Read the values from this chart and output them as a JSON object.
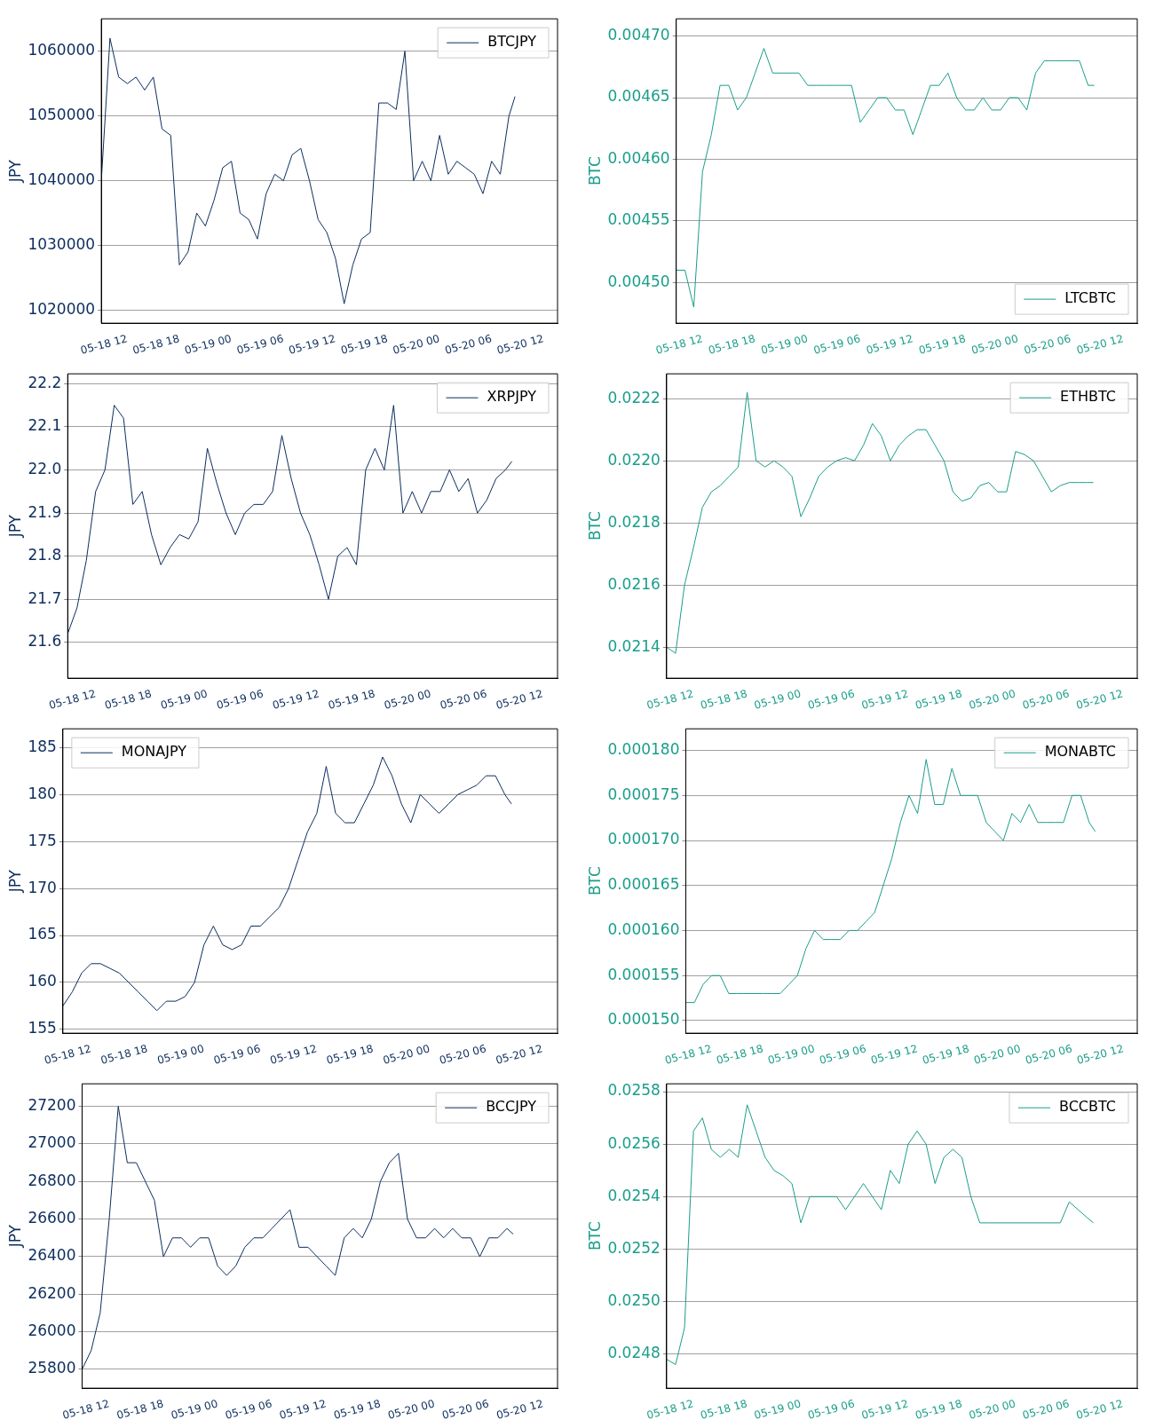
{
  "chart_data": [
    {
      "type": "line",
      "ylabel": "JPY",
      "x": [
        "--05-18T09:00",
        "--05-18T10:00",
        "--05-18T11:00",
        "--05-18T12:00",
        "--05-18T13:00",
        "--05-18T14:00",
        "--05-18T15:00",
        "--05-18T16:00",
        "--05-18T17:00",
        "--05-18T18:00",
        "--05-18T19:00",
        "--05-18T20:00",
        "--05-18T21:00",
        "--05-18T22:00",
        "--05-18T23:00",
        "--05-19T00:00",
        "--05-19T01:00",
        "--05-19T02:00",
        "--05-19T03:00",
        "--05-19T04:00",
        "--05-19T05:00",
        "--05-19T06:00",
        "--05-19T07:00",
        "--05-19T08:00",
        "--05-19T09:00",
        "--05-19T10:00",
        "--05-19T11:00",
        "--05-19T12:00",
        "--05-19T13:00",
        "--05-19T14:00",
        "--05-19T15:00",
        "--05-19T16:00",
        "--05-19T17:00",
        "--05-19T18:00",
        "--05-19T19:00",
        "--05-19T20:00",
        "--05-19T21:00",
        "--05-19T22:00",
        "--05-19T23:00",
        "--05-20T00:00",
        "--05-20T01:00",
        "--05-20T02:00",
        "--05-20T03:00",
        "--05-20T04:00",
        "--05-20T05:00",
        "--05-20T06:00",
        "--05-20T07:00",
        "--05-20T08:00",
        "--05-20T08:42"
      ],
      "xlim": [
        "--05-18T09:00",
        "--05-20T13:36"
      ],
      "xticks": [
        {
          "value": "--05-18T12:00",
          "label": "05-18 12"
        },
        {
          "value": "--05-18T18:00",
          "label": "05-18 18"
        },
        {
          "value": "--05-19T00:00",
          "label": "05-19 00"
        },
        {
          "value": "--05-19T06:00",
          "label": "05-19 06"
        },
        {
          "value": "--05-19T12:00",
          "label": "05-19 12"
        },
        {
          "value": "--05-19T18:00",
          "label": "05-19 18"
        },
        {
          "value": "--05-20T00:00",
          "label": "05-20 00"
        },
        {
          "value": "--05-20T06:00",
          "label": "05-20 06"
        },
        {
          "value": "--05-20T12:00",
          "label": "05-20 12"
        }
      ],
      "ylim": [
        1018000,
        1065000
      ],
      "yticks": [
        1020000,
        1030000,
        1040000,
        1050000,
        1060000
      ],
      "grid": "y",
      "legend": "top right",
      "marker": "none",
      "series": [
        {
          "name": "BTCJPY",
          "color": "#0d2e5e",
          "values": [
            1040000,
            1062000,
            1056000,
            1055000,
            1056000,
            1054000,
            1056000,
            1048000,
            1047000,
            1027000,
            1029000,
            1035000,
            1033000,
            1037000,
            1042000,
            1043000,
            1035000,
            1034000,
            1031000,
            1038000,
            1041000,
            1040000,
            1044000,
            1045000,
            1040000,
            1034000,
            1032000,
            1028000,
            1021000,
            1027000,
            1031000,
            1032000,
            1052000,
            1052000,
            1051000,
            1060000,
            1040000,
            1043000,
            1040000,
            1047000,
            1041000,
            1043000,
            1042000,
            1041000,
            1038000,
            1043000,
            1041000,
            1050000,
            1053000
          ]
        }
      ]
    },
    {
      "type": "line",
      "ylabel": "BTC",
      "x": [
        "--05-18T09:00",
        "--05-18T10:00",
        "--05-18T11:00",
        "--05-18T12:00",
        "--05-18T13:00",
        "--05-18T14:00",
        "--05-18T15:00",
        "--05-18T16:00",
        "--05-18T17:00",
        "--05-18T18:00",
        "--05-18T19:00",
        "--05-18T20:00",
        "--05-18T21:00",
        "--05-18T22:00",
        "--05-18T23:00",
        "--05-19T00:00",
        "--05-19T01:00",
        "--05-19T02:00",
        "--05-19T03:00",
        "--05-19T04:00",
        "--05-19T05:00",
        "--05-19T06:00",
        "--05-19T07:00",
        "--05-19T08:00",
        "--05-19T09:00",
        "--05-19T10:00",
        "--05-19T11:00",
        "--05-19T12:00",
        "--05-19T13:00",
        "--05-19T14:00",
        "--05-19T15:00",
        "--05-19T16:00",
        "--05-19T17:00",
        "--05-19T18:00",
        "--05-19T19:00",
        "--05-19T20:00",
        "--05-19T21:00",
        "--05-19T22:00",
        "--05-19T23:00",
        "--05-20T00:00",
        "--05-20T01:00",
        "--05-20T02:00",
        "--05-20T03:00",
        "--05-20T04:00",
        "--05-20T05:00",
        "--05-20T06:00",
        "--05-20T07:00",
        "--05-20T08:00",
        "--05-20T08:42"
      ],
      "xlim": [
        "--05-18T09:00",
        "--05-20T13:36"
      ],
      "xticks": [
        {
          "value": "--05-18T12:00",
          "label": "05-18 12"
        },
        {
          "value": "--05-18T18:00",
          "label": "05-18 18"
        },
        {
          "value": "--05-19T00:00",
          "label": "05-19 00"
        },
        {
          "value": "--05-19T06:00",
          "label": "05-19 06"
        },
        {
          "value": "--05-19T12:00",
          "label": "05-19 12"
        },
        {
          "value": "--05-19T18:00",
          "label": "05-19 18"
        },
        {
          "value": "--05-20T00:00",
          "label": "05-20 00"
        },
        {
          "value": "--05-20T06:00",
          "label": "05-20 06"
        },
        {
          "value": "--05-20T12:00",
          "label": "05-20 12"
        }
      ],
      "ylim": [
        0.004467,
        0.004714
      ],
      "yticks": [
        {
          "value": 0.0045,
          "label": "0.00450"
        },
        {
          "value": 0.00455,
          "label": "0.00455"
        },
        {
          "value": 0.0046,
          "label": "0.00460"
        },
        {
          "value": 0.00465,
          "label": "0.00465"
        },
        {
          "value": 0.0047,
          "label": "0.00470"
        }
      ],
      "grid": "y",
      "legend": "bottom right",
      "marker": "none",
      "series": [
        {
          "name": "LTCBTC",
          "color": "#1a9e8a",
          "values": [
            0.00451,
            0.00451,
            0.00448,
            0.00459,
            0.00462,
            0.00466,
            0.00466,
            0.00464,
            0.00465,
            0.00467,
            0.00469,
            0.00467,
            0.00467,
            0.00467,
            0.00467,
            0.00466,
            0.00466,
            0.00466,
            0.00466,
            0.00466,
            0.00466,
            0.00463,
            0.00464,
            0.00465,
            0.00465,
            0.00464,
            0.00464,
            0.00462,
            0.00464,
            0.00466,
            0.00466,
            0.00467,
            0.00465,
            0.00464,
            0.00464,
            0.00465,
            0.00464,
            0.00464,
            0.00465,
            0.00465,
            0.00464,
            0.00467,
            0.00468,
            0.00468,
            0.00468,
            0.00468,
            0.00468,
            0.00466,
            0.00466
          ]
        }
      ]
    },
    {
      "type": "line",
      "ylabel": "JPY",
      "x": [
        "--05-18T09:00",
        "--05-18T10:00",
        "--05-18T11:00",
        "--05-18T12:00",
        "--05-18T13:00",
        "--05-18T14:00",
        "--05-18T15:00",
        "--05-18T16:00",
        "--05-18T17:00",
        "--05-18T18:00",
        "--05-18T19:00",
        "--05-18T20:00",
        "--05-18T21:00",
        "--05-18T22:00",
        "--05-18T23:00",
        "--05-19T00:00",
        "--05-19T01:00",
        "--05-19T02:00",
        "--05-19T03:00",
        "--05-19T04:00",
        "--05-19T05:00",
        "--05-19T06:00",
        "--05-19T07:00",
        "--05-19T08:00",
        "--05-19T09:00",
        "--05-19T10:00",
        "--05-19T11:00",
        "--05-19T12:00",
        "--05-19T13:00",
        "--05-19T14:00",
        "--05-19T15:00",
        "--05-19T16:00",
        "--05-19T17:00",
        "--05-19T18:00",
        "--05-19T19:00",
        "--05-19T20:00",
        "--05-19T21:00",
        "--05-19T22:00",
        "--05-19T23:00",
        "--05-20T00:00",
        "--05-20T01:00",
        "--05-20T02:00",
        "--05-20T03:00",
        "--05-20T04:00",
        "--05-20T05:00",
        "--05-20T06:00",
        "--05-20T07:00",
        "--05-20T08:00",
        "--05-20T08:42"
      ],
      "xlim": [
        "--05-18T09:00",
        "--05-20T13:36"
      ],
      "xticks": [
        {
          "value": "--05-18T12:00",
          "label": "05-18 12"
        },
        {
          "value": "--05-18T18:00",
          "label": "05-18 18"
        },
        {
          "value": "--05-19T00:00",
          "label": "05-19 00"
        },
        {
          "value": "--05-19T06:00",
          "label": "05-19 06"
        },
        {
          "value": "--05-19T12:00",
          "label": "05-19 12"
        },
        {
          "value": "--05-19T18:00",
          "label": "05-19 18"
        },
        {
          "value": "--05-20T00:00",
          "label": "05-20 00"
        },
        {
          "value": "--05-20T06:00",
          "label": "05-20 06"
        },
        {
          "value": "--05-20T12:00",
          "label": "05-20 12"
        }
      ],
      "ylim": [
        21.517,
        22.223
      ],
      "yticks": [
        21.6,
        21.7,
        21.8,
        21.9,
        {
          "value": 22,
          "label": "22.0"
        },
        22.1,
        22.2
      ],
      "grid": "y",
      "legend": "top right",
      "marker": "none",
      "series": [
        {
          "name": "XRPJPY",
          "color": "#0d2e5e",
          "values": [
            21.62,
            21.68,
            21.79,
            21.95,
            22.0,
            22.15,
            22.12,
            21.92,
            21.95,
            21.85,
            21.78,
            21.82,
            21.85,
            21.84,
            21.88,
            22.05,
            21.97,
            21.9,
            21.85,
            21.9,
            21.92,
            21.92,
            21.95,
            22.08,
            21.98,
            21.9,
            21.85,
            21.78,
            21.7,
            21.8,
            21.82,
            21.78,
            22.0,
            22.05,
            22.0,
            22.15,
            21.9,
            21.95,
            21.9,
            21.95,
            21.95,
            22.0,
            21.95,
            21.98,
            21.9,
            21.93,
            21.98,
            22.0,
            22.02
          ]
        }
      ]
    },
    {
      "type": "line",
      "ylabel": "BTC",
      "x": [
        "--05-18T09:00",
        "--05-18T10:00",
        "--05-18T11:00",
        "--05-18T12:00",
        "--05-18T13:00",
        "--05-18T14:00",
        "--05-18T15:00",
        "--05-18T16:00",
        "--05-18T17:00",
        "--05-18T18:00",
        "--05-18T19:00",
        "--05-18T20:00",
        "--05-18T21:00",
        "--05-18T22:00",
        "--05-18T23:00",
        "--05-19T00:00",
        "--05-19T01:00",
        "--05-19T02:00",
        "--05-19T03:00",
        "--05-19T04:00",
        "--05-19T05:00",
        "--05-19T06:00",
        "--05-19T07:00",
        "--05-19T08:00",
        "--05-19T09:00",
        "--05-19T10:00",
        "--05-19T11:00",
        "--05-19T12:00",
        "--05-19T13:00",
        "--05-19T14:00",
        "--05-19T15:00",
        "--05-19T16:00",
        "--05-19T17:00",
        "--05-19T18:00",
        "--05-19T19:00",
        "--05-19T20:00",
        "--05-19T21:00",
        "--05-19T22:00",
        "--05-19T23:00",
        "--05-20T00:00",
        "--05-20T01:00",
        "--05-20T02:00",
        "--05-20T03:00",
        "--05-20T04:00",
        "--05-20T05:00",
        "--05-20T06:00",
        "--05-20T07:00",
        "--05-20T08:00",
        "--05-20T08:42"
      ],
      "xlim": [
        "--05-18T09:00",
        "--05-20T13:36"
      ],
      "xticks": [
        {
          "value": "--05-18T12:00",
          "label": "05-18 12"
        },
        {
          "value": "--05-18T18:00",
          "label": "05-18 18"
        },
        {
          "value": "--05-19T00:00",
          "label": "05-19 00"
        },
        {
          "value": "--05-19T06:00",
          "label": "05-19 06"
        },
        {
          "value": "--05-19T12:00",
          "label": "05-19 12"
        },
        {
          "value": "--05-19T18:00",
          "label": "05-19 18"
        },
        {
          "value": "--05-20T00:00",
          "label": "05-20 00"
        },
        {
          "value": "--05-20T06:00",
          "label": "05-20 06"
        },
        {
          "value": "--05-20T12:00",
          "label": "05-20 12"
        }
      ],
      "ylim": [
        0.0213,
        0.02228
      ],
      "yticks": [
        0.0214,
        0.0216,
        0.0218,
        {
          "value": 0.022,
          "label": "0.0220"
        },
        0.0222
      ],
      "grid": "y",
      "legend": "top right",
      "marker": "none",
      "series": [
        {
          "name": "ETHBTC",
          "color": "#1a9e8a",
          "values": [
            0.0214,
            0.02138,
            0.0216,
            0.02172,
            0.02185,
            0.0219,
            0.02192,
            0.02195,
            0.02198,
            0.02222,
            0.022,
            0.02198,
            0.022,
            0.02198,
            0.02195,
            0.02182,
            0.02188,
            0.02195,
            0.02198,
            0.022,
            0.02201,
            0.022,
            0.02205,
            0.02212,
            0.02208,
            0.022,
            0.02205,
            0.02208,
            0.0221,
            0.0221,
            0.02205,
            0.022,
            0.0219,
            0.02187,
            0.02188,
            0.02192,
            0.02193,
            0.0219,
            0.0219,
            0.02203,
            0.02202,
            0.022,
            0.02195,
            0.0219,
            0.02192,
            0.02193,
            0.02193,
            0.02193,
            0.02193
          ]
        }
      ]
    },
    {
      "type": "line",
      "ylabel": "JPY",
      "x": [
        "--05-18T09:00",
        "--05-18T10:00",
        "--05-18T11:00",
        "--05-18T12:00",
        "--05-18T13:00",
        "--05-18T14:00",
        "--05-18T15:00",
        "--05-18T16:00",
        "--05-18T17:00",
        "--05-18T18:00",
        "--05-18T19:00",
        "--05-18T20:00",
        "--05-18T21:00",
        "--05-18T22:00",
        "--05-18T23:00",
        "--05-19T00:00",
        "--05-19T01:00",
        "--05-19T02:00",
        "--05-19T03:00",
        "--05-19T04:00",
        "--05-19T05:00",
        "--05-19T06:00",
        "--05-19T07:00",
        "--05-19T08:00",
        "--05-19T09:00",
        "--05-19T10:00",
        "--05-19T11:00",
        "--05-19T12:00",
        "--05-19T13:00",
        "--05-19T14:00",
        "--05-19T15:00",
        "--05-19T16:00",
        "--05-19T17:00",
        "--05-19T18:00",
        "--05-19T19:00",
        "--05-19T20:00",
        "--05-19T21:00",
        "--05-19T22:00",
        "--05-19T23:00",
        "--05-20T00:00",
        "--05-20T01:00",
        "--05-20T02:00",
        "--05-20T03:00",
        "--05-20T04:00",
        "--05-20T05:00",
        "--05-20T06:00",
        "--05-20T07:00",
        "--05-20T08:00",
        "--05-20T08:42"
      ],
      "xlim": [
        "--05-18T09:00",
        "--05-20T13:36"
      ],
      "xticks": [
        {
          "value": "--05-18T12:00",
          "label": "05-18 12"
        },
        {
          "value": "--05-18T18:00",
          "label": "05-18 18"
        },
        {
          "value": "--05-19T00:00",
          "label": "05-19 00"
        },
        {
          "value": "--05-19T06:00",
          "label": "05-19 06"
        },
        {
          "value": "--05-19T12:00",
          "label": "05-19 12"
        },
        {
          "value": "--05-19T18:00",
          "label": "05-19 18"
        },
        {
          "value": "--05-20T00:00",
          "label": "05-20 00"
        },
        {
          "value": "--05-20T06:00",
          "label": "05-20 06"
        },
        {
          "value": "--05-20T12:00",
          "label": "05-20 12"
        }
      ],
      "ylim": [
        154.6,
        187
      ],
      "yticks": [
        155,
        160,
        165,
        170,
        175,
        180,
        185
      ],
      "grid": "y",
      "legend": "top left",
      "marker": "none",
      "series": [
        {
          "name": "MONAJPY",
          "color": "#0d2e5e",
          "values": [
            157.5,
            159,
            161,
            162,
            162,
            161.5,
            161,
            160,
            159,
            158,
            157,
            158,
            158,
            158.5,
            160,
            164,
            166,
            164,
            163.5,
            164,
            166,
            166,
            167,
            168,
            170,
            173,
            176,
            178,
            183,
            178,
            177,
            177,
            179,
            181,
            184,
            182,
            179,
            177,
            180,
            179,
            178,
            179,
            180,
            180.5,
            181,
            182,
            182,
            180,
            179
          ]
        }
      ]
    },
    {
      "type": "line",
      "ylabel": "BTC",
      "x": [
        "--05-18T09:00",
        "--05-18T10:00",
        "--05-18T11:00",
        "--05-18T12:00",
        "--05-18T13:00",
        "--05-18T14:00",
        "--05-18T15:00",
        "--05-18T16:00",
        "--05-18T17:00",
        "--05-18T18:00",
        "--05-18T19:00",
        "--05-18T20:00",
        "--05-18T21:00",
        "--05-18T22:00",
        "--05-18T23:00",
        "--05-19T00:00",
        "--05-19T01:00",
        "--05-19T02:00",
        "--05-19T03:00",
        "--05-19T04:00",
        "--05-19T05:00",
        "--05-19T06:00",
        "--05-19T07:00",
        "--05-19T08:00",
        "--05-19T09:00",
        "--05-19T10:00",
        "--05-19T11:00",
        "--05-19T12:00",
        "--05-19T13:00",
        "--05-19T14:00",
        "--05-19T15:00",
        "--05-19T16:00",
        "--05-19T17:00",
        "--05-19T18:00",
        "--05-19T19:00",
        "--05-19T20:00",
        "--05-19T21:00",
        "--05-19T22:00",
        "--05-19T23:00",
        "--05-20T00:00",
        "--05-20T01:00",
        "--05-20T02:00",
        "--05-20T03:00",
        "--05-20T04:00",
        "--05-20T05:00",
        "--05-20T06:00",
        "--05-20T07:00",
        "--05-20T08:00",
        "--05-20T08:42"
      ],
      "xlim": [
        "--05-18T09:00",
        "--05-20T13:36"
      ],
      "xticks": [
        {
          "value": "--05-18T12:00",
          "label": "05-18 12"
        },
        {
          "value": "--05-18T18:00",
          "label": "05-18 18"
        },
        {
          "value": "--05-19T00:00",
          "label": "05-19 00"
        },
        {
          "value": "--05-19T06:00",
          "label": "05-19 06"
        },
        {
          "value": "--05-19T12:00",
          "label": "05-19 12"
        },
        {
          "value": "--05-19T18:00",
          "label": "05-19 18"
        },
        {
          "value": "--05-20T00:00",
          "label": "05-20 00"
        },
        {
          "value": "--05-20T06:00",
          "label": "05-20 06"
        },
        {
          "value": "--05-20T12:00",
          "label": "05-20 12"
        }
      ],
      "ylim": [
        0.0001486,
        0.0001824
      ],
      "yticks": [
        {
          "value": 0.00015,
          "label": "0.000150"
        },
        {
          "value": 0.000155,
          "label": "0.000155"
        },
        {
          "value": 0.00016,
          "label": "0.000160"
        },
        {
          "value": 0.000165,
          "label": "0.000165"
        },
        {
          "value": 0.00017,
          "label": "0.000170"
        },
        {
          "value": 0.000175,
          "label": "0.000175"
        },
        {
          "value": 0.00018,
          "label": "0.000180"
        }
      ],
      "grid": "y",
      "legend": "top right",
      "marker": "none",
      "series": [
        {
          "name": "MONABTC",
          "color": "#1a9e8a",
          "values": [
            0.000152,
            0.000152,
            0.000154,
            0.000155,
            0.000155,
            0.000153,
            0.000153,
            0.000153,
            0.000153,
            0.000153,
            0.000153,
            0.000153,
            0.000154,
            0.000155,
            0.000158,
            0.00016,
            0.000159,
            0.000159,
            0.000159,
            0.00016,
            0.00016,
            0.000161,
            0.000162,
            0.000165,
            0.000168,
            0.000172,
            0.000175,
            0.000173,
            0.000179,
            0.000174,
            0.000174,
            0.000178,
            0.000175,
            0.000175,
            0.000175,
            0.000172,
            0.000171,
            0.00017,
            0.000173,
            0.000172,
            0.000174,
            0.000172,
            0.000172,
            0.000172,
            0.000172,
            0.000175,
            0.000175,
            0.000172,
            0.000171
          ]
        }
      ]
    },
    {
      "type": "line",
      "ylabel": "JPY",
      "x": [
        "--05-18T09:00",
        "--05-18T10:00",
        "--05-18T11:00",
        "--05-18T12:00",
        "--05-18T13:00",
        "--05-18T14:00",
        "--05-18T15:00",
        "--05-18T16:00",
        "--05-18T17:00",
        "--05-18T18:00",
        "--05-18T19:00",
        "--05-18T20:00",
        "--05-18T21:00",
        "--05-18T22:00",
        "--05-18T23:00",
        "--05-19T00:00",
        "--05-19T01:00",
        "--05-19T02:00",
        "--05-19T03:00",
        "--05-19T04:00",
        "--05-19T05:00",
        "--05-19T06:00",
        "--05-19T07:00",
        "--05-19T08:00",
        "--05-19T09:00",
        "--05-19T10:00",
        "--05-19T11:00",
        "--05-19T12:00",
        "--05-19T13:00",
        "--05-19T14:00",
        "--05-19T15:00",
        "--05-19T16:00",
        "--05-19T17:00",
        "--05-19T18:00",
        "--05-19T19:00",
        "--05-19T20:00",
        "--05-19T21:00",
        "--05-19T22:00",
        "--05-19T23:00",
        "--05-20T00:00",
        "--05-20T01:00",
        "--05-20T02:00",
        "--05-20T03:00",
        "--05-20T04:00",
        "--05-20T05:00",
        "--05-20T06:00",
        "--05-20T07:00",
        "--05-20T08:00",
        "--05-20T08:42"
      ],
      "xlim": [
        "--05-18T09:00",
        "--05-20T13:36"
      ],
      "xticks": [
        {
          "value": "--05-18T12:00",
          "label": "05-18 12"
        },
        {
          "value": "--05-18T18:00",
          "label": "05-18 18"
        },
        {
          "value": "--05-19T00:00",
          "label": "05-19 00"
        },
        {
          "value": "--05-19T06:00",
          "label": "05-19 06"
        },
        {
          "value": "--05-19T12:00",
          "label": "05-19 12"
        },
        {
          "value": "--05-19T18:00",
          "label": "05-19 18"
        },
        {
          "value": "--05-20T00:00",
          "label": "05-20 00"
        },
        {
          "value": "--05-20T06:00",
          "label": "05-20 06"
        },
        {
          "value": "--05-20T12:00",
          "label": "05-20 12"
        }
      ],
      "ylim": [
        25700,
        27320
      ],
      "yticks": [
        25800,
        26000,
        26200,
        26400,
        26600,
        26800,
        27000,
        27200
      ],
      "grid": "y",
      "legend": "top right",
      "marker": "none",
      "series": [
        {
          "name": "BCCJPY",
          "color": "#0d2e5e",
          "values": [
            25800,
            25900,
            26100,
            26600,
            27200,
            26900,
            26900,
            26800,
            26700,
            26400,
            26500,
            26500,
            26450,
            26500,
            26500,
            26350,
            26300,
            26350,
            26450,
            26500,
            26500,
            26550,
            26600,
            26650,
            26450,
            26450,
            26400,
            26350,
            26300,
            26500,
            26550,
            26500,
            26600,
            26800,
            26900,
            26950,
            26600,
            26500,
            26500,
            26550,
            26500,
            26550,
            26500,
            26500,
            26400,
            26500,
            26500,
            26550,
            26520
          ]
        }
      ]
    },
    {
      "type": "line",
      "ylabel": "BTC",
      "x": [
        "--05-18T09:00",
        "--05-18T10:00",
        "--05-18T11:00",
        "--05-18T12:00",
        "--05-18T13:00",
        "--05-18T14:00",
        "--05-18T15:00",
        "--05-18T16:00",
        "--05-18T17:00",
        "--05-18T18:00",
        "--05-18T19:00",
        "--05-18T20:00",
        "--05-18T21:00",
        "--05-18T22:00",
        "--05-18T23:00",
        "--05-19T00:00",
        "--05-19T01:00",
        "--05-19T02:00",
        "--05-19T03:00",
        "--05-19T04:00",
        "--05-19T05:00",
        "--05-19T06:00",
        "--05-19T07:00",
        "--05-19T08:00",
        "--05-19T09:00",
        "--05-19T10:00",
        "--05-19T11:00",
        "--05-19T12:00",
        "--05-19T13:00",
        "--05-19T14:00",
        "--05-19T15:00",
        "--05-19T16:00",
        "--05-19T17:00",
        "--05-19T18:00",
        "--05-19T19:00",
        "--05-19T20:00",
        "--05-19T21:00",
        "--05-19T22:00",
        "--05-19T23:00",
        "--05-20T00:00",
        "--05-20T01:00",
        "--05-20T02:00",
        "--05-20T03:00",
        "--05-20T04:00",
        "--05-20T05:00",
        "--05-20T06:00",
        "--05-20T07:00",
        "--05-20T08:00",
        "--05-20T08:42"
      ],
      "xlim": [
        "--05-18T09:00",
        "--05-20T13:36"
      ],
      "xticks": [
        {
          "value": "--05-18T12:00",
          "label": "05-18 12"
        },
        {
          "value": "--05-18T18:00",
          "label": "05-18 18"
        },
        {
          "value": "--05-19T00:00",
          "label": "05-19 00"
        },
        {
          "value": "--05-19T06:00",
          "label": "05-19 06"
        },
        {
          "value": "--05-19T12:00",
          "label": "05-19 12"
        },
        {
          "value": "--05-19T18:00",
          "label": "05-19 18"
        },
        {
          "value": "--05-20T00:00",
          "label": "05-20 00"
        },
        {
          "value": "--05-20T06:00",
          "label": "05-20 06"
        },
        {
          "value": "--05-20T12:00",
          "label": "05-20 12"
        }
      ],
      "ylim": [
        0.02467,
        0.02583
      ],
      "yticks": [
        0.0248,
        {
          "value": 0.025,
          "label": "0.0250"
        },
        0.0252,
        0.0254,
        0.0256,
        0.0258
      ],
      "grid": "y",
      "legend": "top right",
      "marker": "none",
      "series": [
        {
          "name": "BCCBTC",
          "color": "#1a9e8a",
          "values": [
            0.02478,
            0.02476,
            0.0249,
            0.02565,
            0.0257,
            0.02558,
            0.02555,
            0.02558,
            0.02555,
            0.02575,
            0.02565,
            0.02555,
            0.0255,
            0.02548,
            0.02545,
            0.0253,
            0.0254,
            0.0254,
            0.0254,
            0.0254,
            0.02535,
            0.0254,
            0.02545,
            0.0254,
            0.02535,
            0.0255,
            0.02545,
            0.0256,
            0.02565,
            0.0256,
            0.02545,
            0.02555,
            0.02558,
            0.02555,
            0.0254,
            0.0253,
            0.0253,
            0.0253,
            0.0253,
            0.0253,
            0.0253,
            0.0253,
            0.0253,
            0.0253,
            0.0253,
            0.02538,
            0.02535,
            0.02532,
            0.0253
          ]
        }
      ]
    }
  ]
}
